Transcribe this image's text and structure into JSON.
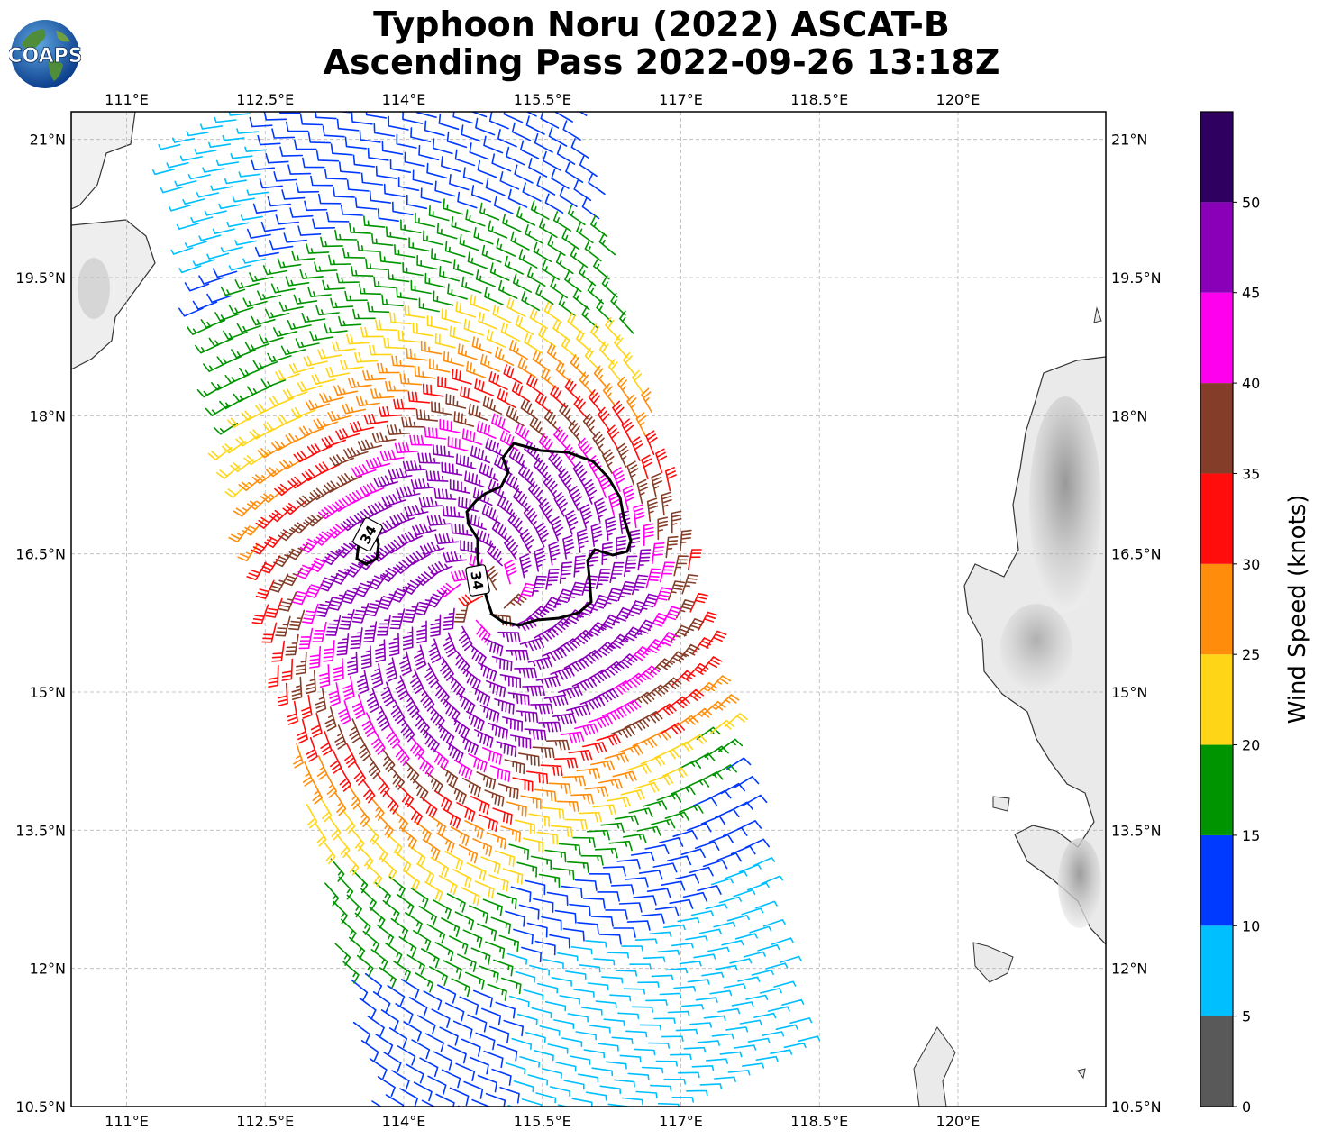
{
  "title_line1": "Typhoon Noru (2022) ASCAT-B",
  "title_line2": "Ascending Pass 2022-09-26 13:18Z",
  "logo_text": "COAPS",
  "map": {
    "lon_range": [
      110.4,
      121.6
    ],
    "lat_range": [
      10.5,
      21.3
    ],
    "lon_ticks": [
      "111°E",
      "112.5°E",
      "114°E",
      "115.5°E",
      "117°E",
      "118.5°E",
      "120°E"
    ],
    "lat_ticks": [
      "21°N",
      "19.5°N",
      "18°N",
      "16.5°N",
      "15°N",
      "13.5°N",
      "12°N",
      "10.5°N"
    ],
    "contour_label": "34",
    "storm_center": {
      "lon": 114.9,
      "lat": 16.0
    }
  },
  "colorbar": {
    "label": "Wind Speed (knots)",
    "ticks": [
      "0",
      "5",
      "10",
      "15",
      "20",
      "25",
      "30",
      "35",
      "40",
      "45",
      "50"
    ],
    "bins": [
      {
        "from": 0,
        "to": 5,
        "color": "#595959"
      },
      {
        "from": 5,
        "to": 10,
        "color": "#00bfff"
      },
      {
        "from": 10,
        "to": 15,
        "color": "#0039ff"
      },
      {
        "from": 15,
        "to": 20,
        "color": "#009400"
      },
      {
        "from": 20,
        "to": 25,
        "color": "#ffd517"
      },
      {
        "from": 25,
        "to": 30,
        "color": "#ff8c0a"
      },
      {
        "from": 30,
        "to": 35,
        "color": "#ff0d0d"
      },
      {
        "from": 35,
        "to": 40,
        "color": "#833d28"
      },
      {
        "from": 40,
        "to": 45,
        "color": "#ff00ee"
      },
      {
        "from": 45,
        "to": 50,
        "color": "#8a00b8"
      },
      {
        "from": 50,
        "to": 55,
        "color": "#2f0060"
      }
    ]
  }
}
